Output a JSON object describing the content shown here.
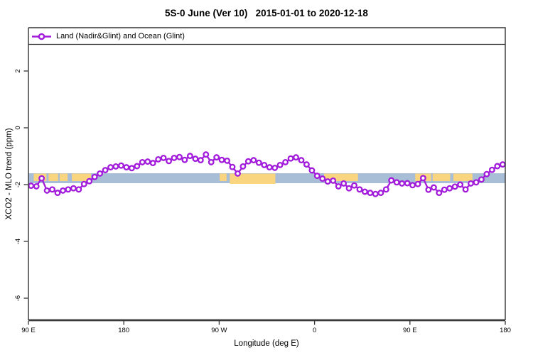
{
  "figure": {
    "title": "5S-0 June (Ver 10)   2015-01-01 to 2020-12-18"
  },
  "legend": {
    "label": "Land (Nadir&Glint) and Ocean (Glint)",
    "marker": "open-circle-on-line",
    "position": "top-strip-inside-plot"
  },
  "colors": {
    "series": "#A21BDB",
    "ocean_band": "#A8BDD6",
    "land_patch": "#FAD580",
    "axis": "#333333",
    "background": "#ffffff"
  },
  "chart_data": {
    "type": "line",
    "title": "5S-0 June (Ver 10)   2015-01-01 to 2020-12-18",
    "xlabel": "Longitude (deg E)",
    "ylabel": "XCO2 - MLO trend (ppm)",
    "xlim": [
      90,
      540
    ],
    "ylim": [
      -6.775,
      3.525
    ],
    "grid": false,
    "x_ticks": [
      {
        "value": 90,
        "label": "90 E"
      },
      {
        "value": 180,
        "label": "180"
      },
      {
        "value": 270,
        "label": "90 W"
      },
      {
        "value": 360,
        "label": "0"
      },
      {
        "value": 450,
        "label": "90 E"
      },
      {
        "value": 540,
        "label": "180"
      }
    ],
    "y_ticks": [
      {
        "value": 2,
        "label": "2"
      },
      {
        "value": 0,
        "label": "0"
      },
      {
        "value": -2,
        "label": "-2"
      },
      {
        "value": -4,
        "label": "-4"
      },
      {
        "value": -6,
        "label": "-6"
      }
    ],
    "map_band": {
      "description": "Background world-map strip for latitude band 5S-0: ocean in blue-gray, land in orange",
      "value_top": -1.6,
      "value_bottom": -1.95,
      "land_patches": [
        {
          "lon": [
            95,
            107
          ],
          "full_height": false
        },
        {
          "lon": [
            109,
            118
          ],
          "full_height": false
        },
        {
          "lon": [
            119.5,
            127
          ],
          "full_height": false
        },
        {
          "lon": [
            131,
            149
          ],
          "full_height": false
        },
        {
          "lon": [
            270.5,
            277
          ],
          "full_height": false
        },
        {
          "lon": [
            280,
            323
          ],
          "full_height": true
        },
        {
          "lon": [
            369,
            401
          ],
          "full_height": false
        },
        {
          "lon": [
            455,
            470
          ],
          "full_height": false
        },
        {
          "lon": [
            471.5,
            488
          ],
          "full_height": false
        },
        {
          "lon": [
            491,
            509
          ],
          "full_height": false
        }
      ]
    },
    "series": [
      {
        "name": "Land (Nadir&Glint) and Ocean (Glint)",
        "x": [
          92.5,
          97.5,
          102.5,
          107.5,
          112.5,
          117.5,
          122.5,
          127.5,
          132.5,
          137.5,
          142.5,
          147.5,
          152.5,
          157.5,
          162.5,
          167.5,
          172.5,
          177.5,
          182.5,
          187.5,
          192.5,
          197.5,
          202.5,
          207.5,
          212.5,
          217.5,
          222.5,
          227.5,
          232.5,
          237.5,
          242.5,
          247.5,
          252.5,
          257.5,
          262.5,
          267.5,
          272.5,
          277.5,
          282.5,
          287.5,
          292.5,
          297.5,
          302.5,
          307.5,
          312.5,
          317.5,
          322.5,
          327.5,
          332.5,
          337.5,
          342.5,
          347.5,
          352.5,
          357.5,
          362.5,
          367.5,
          372.5,
          377.5,
          382.5,
          387.5,
          392.5,
          397.5,
          402.5,
          407.5,
          412.5,
          417.5,
          422.5,
          427.5,
          432.5,
          437.5,
          442.5,
          447.5,
          452.5,
          457.5,
          462.5,
          467.5,
          472.5,
          477.5,
          482.5,
          487.5,
          492.5,
          497.5,
          502.5,
          507.5,
          512.5,
          517.5,
          522.5,
          527.5,
          532.5,
          537.5
        ],
        "y": [
          -2.04,
          -2.06,
          -1.78,
          -2.21,
          -2.17,
          -2.29,
          -2.21,
          -2.17,
          -2.13,
          -2.17,
          -1.98,
          -1.88,
          -1.73,
          -1.61,
          -1.49,
          -1.39,
          -1.36,
          -1.33,
          -1.39,
          -1.42,
          -1.35,
          -1.21,
          -1.19,
          -1.24,
          -1.11,
          -1.06,
          -1.17,
          -1.06,
          -1.03,
          -1.13,
          -0.99,
          -1.09,
          -1.14,
          -0.94,
          -1.21,
          -1.04,
          -1.13,
          -1.16,
          -1.38,
          -1.61,
          -1.36,
          -1.18,
          -1.14,
          -1.23,
          -1.31,
          -1.39,
          -1.41,
          -1.31,
          -1.21,
          -1.08,
          -1.04,
          -1.14,
          -1.29,
          -1.5,
          -1.69,
          -1.79,
          -1.89,
          -1.86,
          -2.06,
          -1.96,
          -2.13,
          -2.03,
          -2.17,
          -2.25,
          -2.29,
          -2.33,
          -2.29,
          -2.17,
          -1.85,
          -1.92,
          -1.96,
          -1.95,
          -2.02,
          -1.98,
          -1.77,
          -2.18,
          -2.1,
          -2.29,
          -2.18,
          -2.13,
          -2.07,
          -2.0,
          -2.17,
          -1.96,
          -1.92,
          -1.82,
          -1.63,
          -1.48,
          -1.35,
          -1.29
        ]
      }
    ]
  }
}
